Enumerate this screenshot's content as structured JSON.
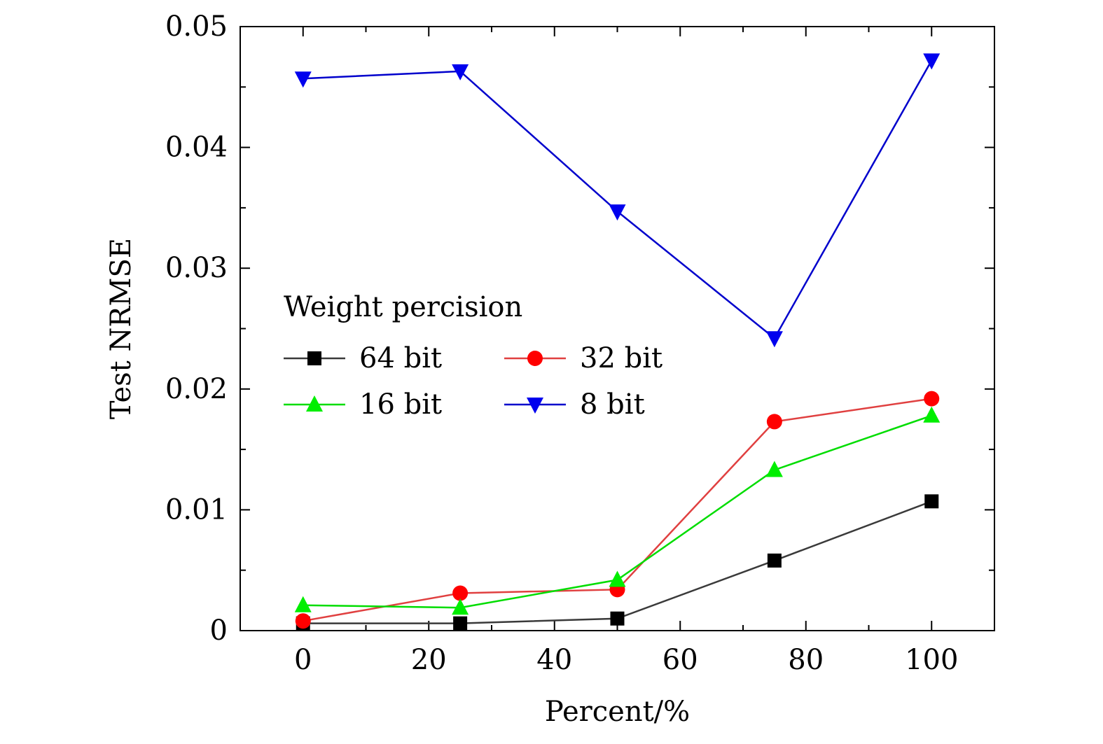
{
  "chart_data": {
    "type": "line",
    "title": "",
    "xlabel": "Percent/%",
    "ylabel": "Test NRMSE",
    "xlim": [
      -10,
      110
    ],
    "ylim": [
      0,
      0.05
    ],
    "xticks": [
      0,
      20,
      40,
      60,
      80,
      100
    ],
    "xtick_labels": [
      "0",
      "20",
      "40",
      "60",
      "80",
      "100"
    ],
    "xminor": [
      10,
      30,
      50,
      70,
      90
    ],
    "yticks": [
      0,
      0.01,
      0.02,
      0.03,
      0.04,
      0.05
    ],
    "ytick_labels": [
      "0",
      "0.01",
      "0.02",
      "0.03",
      "0.04",
      "0.05"
    ],
    "x": [
      0,
      25,
      50,
      75,
      100
    ],
    "legend_title": "Weight percision",
    "legend_position": "center-left",
    "series": [
      {
        "name": "64 bit",
        "marker": "square",
        "color": "#000000",
        "line_color": "#3a3a3a",
        "values": [
          0.0006,
          0.0006,
          0.001,
          0.0058,
          0.0107
        ]
      },
      {
        "name": "32 bit",
        "marker": "circle",
        "color": "#ff0000",
        "line_color": "#e04040",
        "values": [
          0.0008,
          0.0031,
          0.0034,
          0.0173,
          0.0192
        ]
      },
      {
        "name": "16 bit",
        "marker": "triangle-up",
        "color": "#00ee00",
        "line_color": "#00dd00",
        "values": [
          0.0021,
          0.0019,
          0.0042,
          0.0133,
          0.0178
        ]
      },
      {
        "name": "8 bit",
        "marker": "triangle-down",
        "color": "#0000ee",
        "line_color": "#0000cc",
        "values": [
          0.0457,
          0.0463,
          0.0347,
          0.0242,
          0.0472
        ]
      }
    ]
  }
}
